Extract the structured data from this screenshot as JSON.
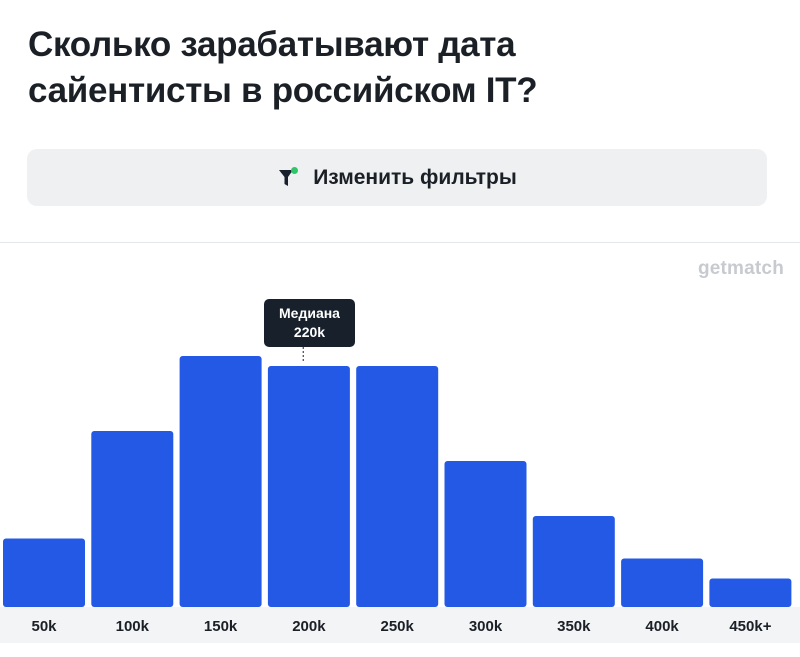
{
  "header": {
    "title": "Сколько зарабатывают дата сайентисты в российском IT?"
  },
  "filters": {
    "button_label": "Изменить фильтры",
    "icon": "filter-icon",
    "icon_color": "#17202b",
    "dot_color": "#31c46b"
  },
  "brand": {
    "name": "getmatch"
  },
  "median": {
    "label": "Медиана",
    "value": "220k",
    "x_value": 220
  },
  "chart_data": {
    "type": "bar",
    "categories": [
      "50k",
      "100k",
      "150k",
      "200k",
      "250k",
      "300k",
      "350k",
      "400k",
      "450k+"
    ],
    "values": [
      27,
      70,
      100,
      96,
      96,
      58,
      36,
      19,
      11
    ],
    "bin_start": [
      50,
      100,
      150,
      200,
      250,
      300,
      350,
      400,
      450
    ],
    "value_unit": "% of tallest bar",
    "ylim": [
      0,
      100
    ],
    "grid": false,
    "legend": "none",
    "bar_color": "#2459e6",
    "title": "",
    "xlabel": "",
    "ylabel": ""
  }
}
